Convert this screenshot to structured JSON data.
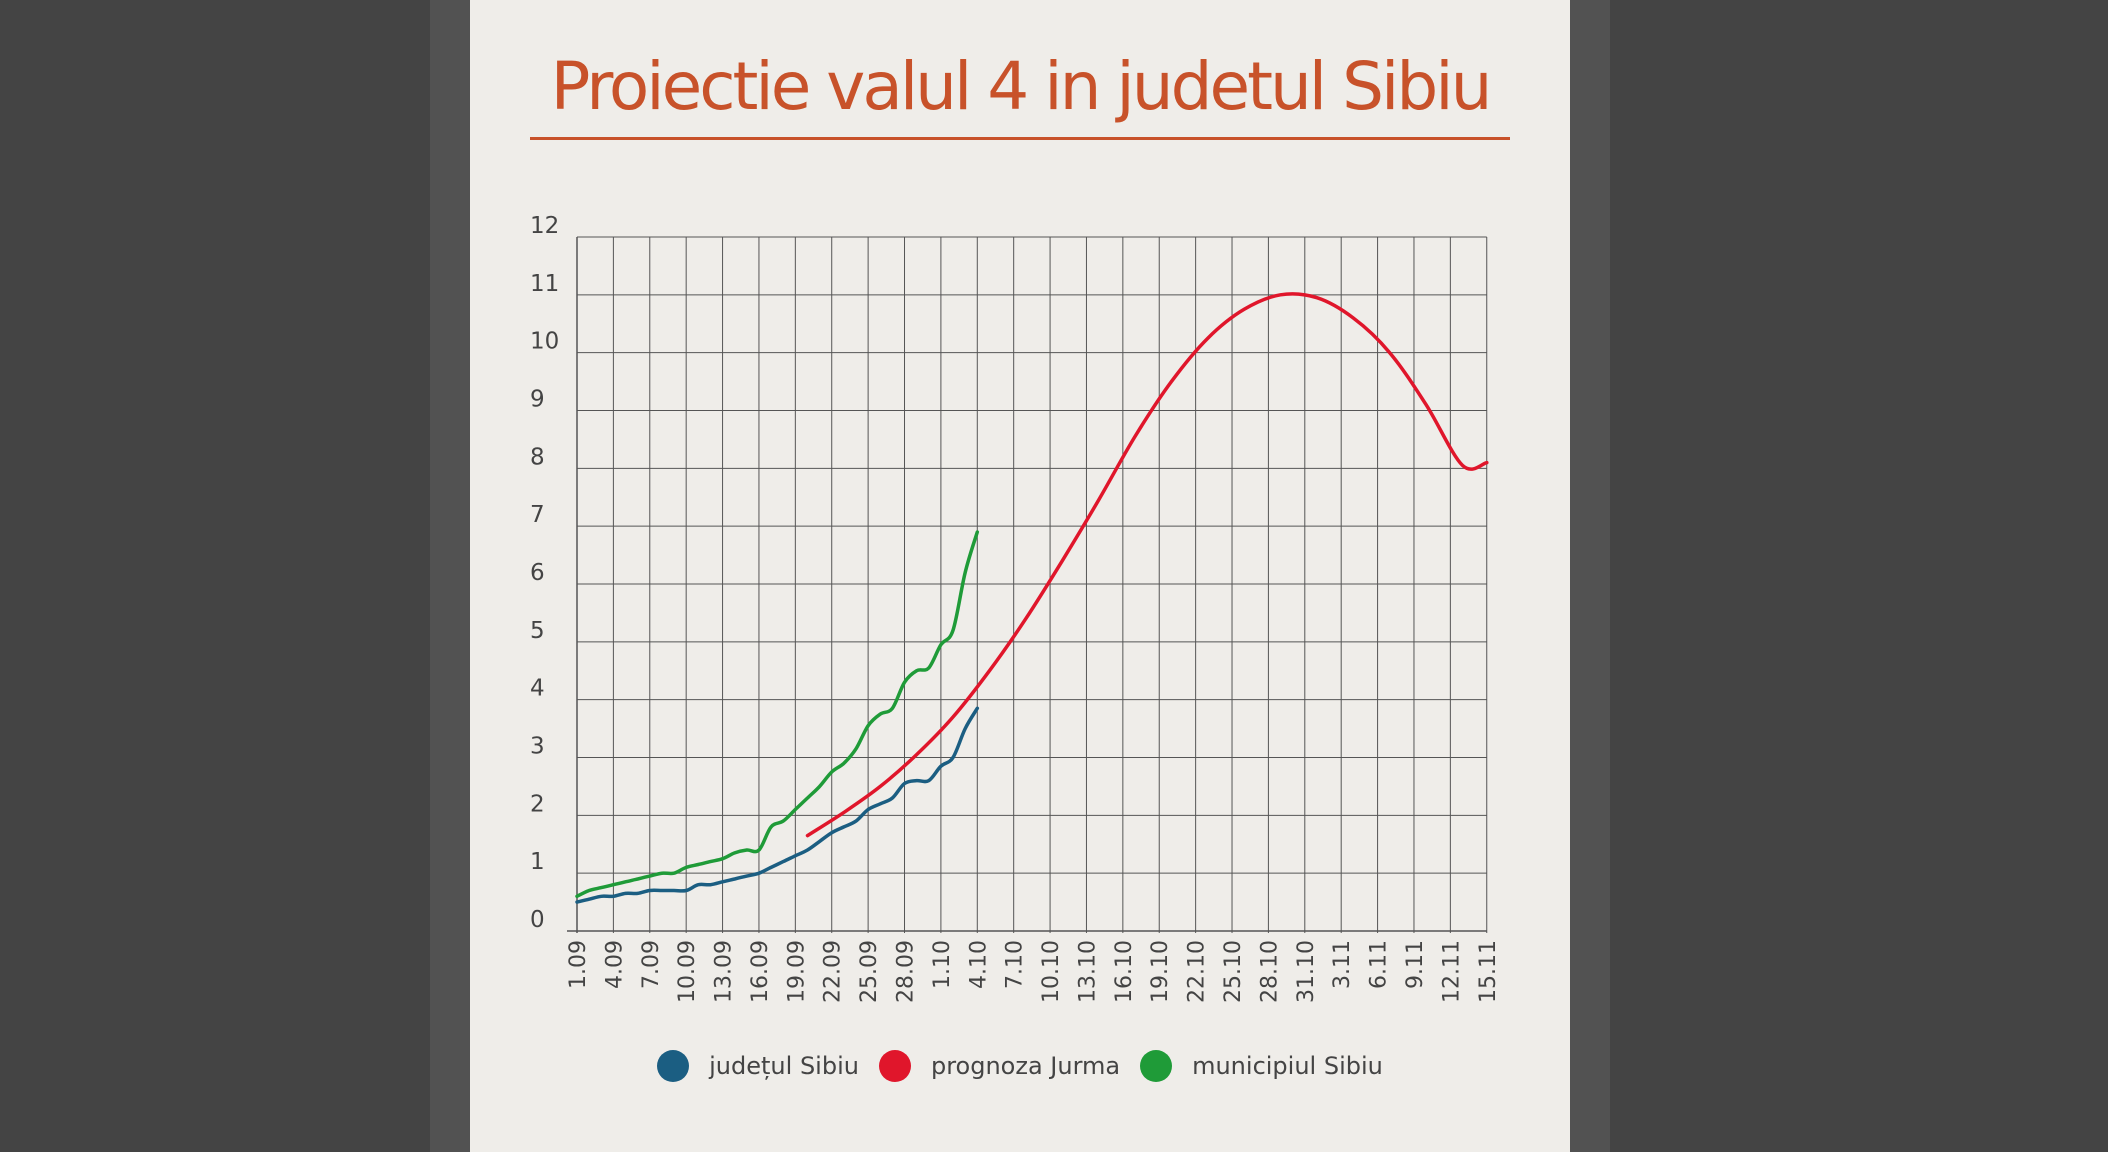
{
  "title": "Proiectie valul 4 in judetul Sibiu",
  "colors": {
    "background": "#efede9",
    "title": "#c8522a",
    "grid": "#555555",
    "judet": "#1b5e82",
    "prognoza": "#e0162b",
    "municipiu": "#1f9b38"
  },
  "legend": [
    {
      "label": "județul Sibiu",
      "color": "#1b5e82"
    },
    {
      "label": "prognoza Jurma",
      "color": "#e0162b"
    },
    {
      "label": "municipiul Sibiu",
      "color": "#1f9b38"
    }
  ],
  "chart_data": {
    "type": "line",
    "title": "Proiectie valul 4 in judetul Sibiu",
    "xlabel": "",
    "ylabel": "",
    "ylim": [
      0,
      12
    ],
    "yticks": [
      "0",
      "1",
      "2",
      "3",
      "4",
      "5",
      "6",
      "7",
      "8",
      "9",
      "10",
      "11",
      "12"
    ],
    "xticks": [
      "1.09",
      "4.09",
      "7.09",
      "10.09",
      "13.09",
      "16.09",
      "19.09",
      "22.09",
      "25.09",
      "28.09",
      "1.10",
      "4.10",
      "7.10",
      "10.10",
      "13.10",
      "16.10",
      "19.10",
      "22.10",
      "25.10",
      "28.10",
      "31.10",
      "3.11",
      "6.11",
      "9.11",
      "12.11",
      "15.11"
    ],
    "grid": true,
    "legend_position": "bottom",
    "series": [
      {
        "name": "județul Sibiu",
        "color": "#1b5e82",
        "x": [
          "1.09",
          "2.09",
          "3.09",
          "4.09",
          "5.09",
          "6.09",
          "7.09",
          "8.09",
          "9.09",
          "10.09",
          "11.09",
          "12.09",
          "13.09",
          "14.09",
          "15.09",
          "16.09",
          "17.09",
          "18.09",
          "19.09",
          "20.09",
          "21.09",
          "22.09",
          "23.09",
          "24.09",
          "25.09",
          "26.09",
          "27.09",
          "28.09",
          "29.09",
          "30.09",
          "1.10",
          "2.10",
          "3.10",
          "4.10"
        ],
        "values": [
          0.5,
          0.55,
          0.6,
          0.6,
          0.65,
          0.65,
          0.7,
          0.7,
          0.7,
          0.7,
          0.8,
          0.8,
          0.85,
          0.9,
          0.95,
          1.0,
          1.1,
          1.2,
          1.3,
          1.4,
          1.55,
          1.7,
          1.8,
          1.9,
          2.1,
          2.2,
          2.3,
          2.55,
          2.6,
          2.6,
          2.85,
          3.0,
          3.5,
          3.85
        ]
      },
      {
        "name": "prognoza Jurma",
        "color": "#e0162b",
        "x": [
          "20.09",
          "23.09",
          "26.09",
          "29.09",
          "2.10",
          "5.10",
          "8.10",
          "11.10",
          "14.10",
          "17.10",
          "20.10",
          "23.10",
          "26.10",
          "29.10",
          "1.11",
          "4.11",
          "7.11",
          "10.11",
          "13.11",
          "15.11"
        ],
        "values": [
          1.65,
          2.05,
          2.5,
          3.05,
          3.7,
          4.5,
          5.4,
          6.4,
          7.45,
          8.55,
          9.5,
          10.25,
          10.75,
          11.0,
          10.95,
          10.6,
          10.0,
          9.1,
          8.05,
          8.1
        ]
      },
      {
        "name": "municipiul Sibiu",
        "color": "#1f9b38",
        "x": [
          "1.09",
          "2.09",
          "3.09",
          "4.09",
          "5.09",
          "6.09",
          "7.09",
          "8.09",
          "9.09",
          "10.09",
          "11.09",
          "12.09",
          "13.09",
          "14.09",
          "15.09",
          "16.09",
          "17.09",
          "18.09",
          "19.09",
          "20.09",
          "21.09",
          "22.09",
          "23.09",
          "24.09",
          "25.09",
          "26.09",
          "27.09",
          "28.09",
          "29.09",
          "30.09",
          "1.10",
          "2.10",
          "3.10",
          "4.10"
        ],
        "values": [
          0.6,
          0.7,
          0.75,
          0.8,
          0.85,
          0.9,
          0.95,
          1.0,
          1.0,
          1.1,
          1.15,
          1.2,
          1.25,
          1.35,
          1.4,
          1.4,
          1.8,
          1.9,
          2.1,
          2.3,
          2.5,
          2.75,
          2.9,
          3.15,
          3.55,
          3.75,
          3.85,
          4.3,
          4.5,
          4.55,
          4.95,
          5.2,
          6.2,
          6.9
        ]
      }
    ]
  }
}
